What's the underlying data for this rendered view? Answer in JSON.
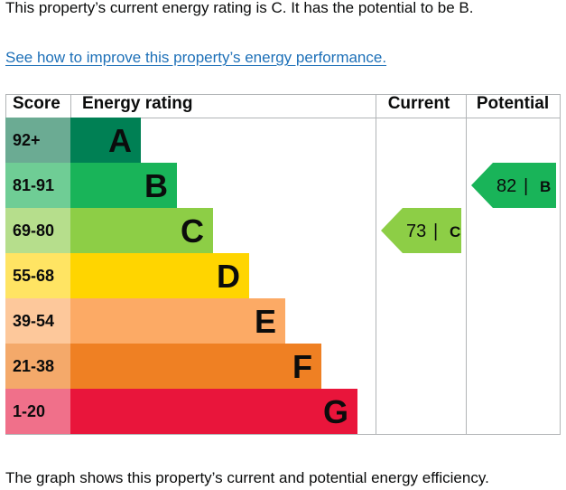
{
  "summary_text": "This property’s current energy rating is C. It has the potential to be B.",
  "improve_link": "See how to improve this property’s energy performance.",
  "caption": "The graph shows this property’s current and potential energy efficiency.",
  "chart_data": {
    "type": "bar",
    "headers": {
      "score": "Score",
      "rating": "Energy rating",
      "current": "Current",
      "potential": "Potential"
    },
    "bands": [
      {
        "score": "92+",
        "letter": "A",
        "color": "#008054",
        "score_bg": "#6bab93"
      },
      {
        "score": "81-91",
        "letter": "B",
        "color": "#19b459",
        "score_bg": "#6fcd95"
      },
      {
        "score": "69-80",
        "letter": "C",
        "color": "#8dce46",
        "score_bg": "#b6de8c"
      },
      {
        "score": "55-68",
        "letter": "D",
        "color": "#ffd500",
        "score_bg": "#ffe463"
      },
      {
        "score": "39-54",
        "letter": "E",
        "color": "#fcaa65",
        "score_bg": "#fdc89b"
      },
      {
        "score": "21-38",
        "letter": "F",
        "color": "#ef8023",
        "score_bg": "#f4a96a"
      },
      {
        "score": "1-20",
        "letter": "G",
        "color": "#e9153b",
        "score_bg": "#f0708a"
      }
    ],
    "current": {
      "value": 73,
      "letter": "C",
      "color": "#8dce46",
      "separator": "|"
    },
    "potential": {
      "value": 82,
      "letter": "B",
      "color": "#19b459",
      "separator": "|"
    }
  }
}
